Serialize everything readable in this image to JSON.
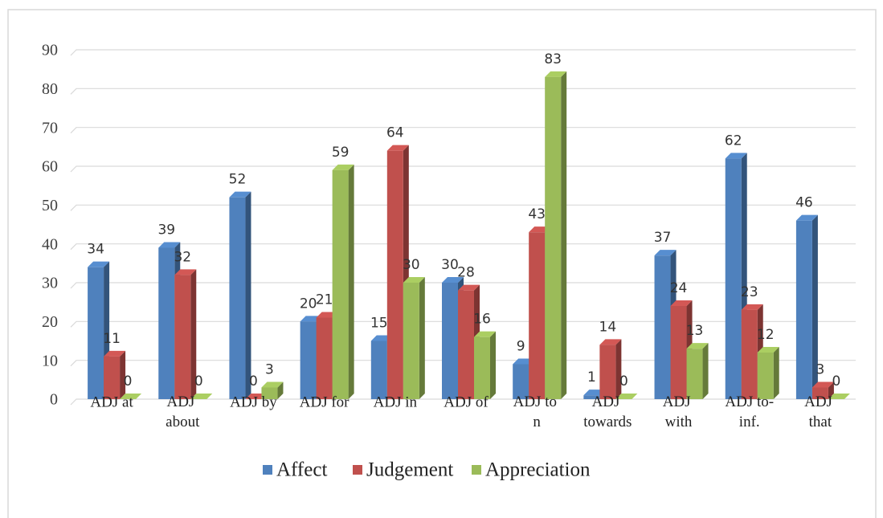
{
  "chart_data": {
    "type": "bar",
    "categories": [
      "ADJ at",
      "ADJ about",
      "ADJ by",
      "ADJ for",
      "ADJ in",
      "ADJ of",
      "ADJ to n",
      "ADJ towards",
      "ADJ with",
      "ADJ to-inf.",
      "ADJ that"
    ],
    "series": [
      {
        "name": "Affect",
        "color": "#4f81bd",
        "values": [
          34,
          39,
          52,
          20,
          15,
          30,
          9,
          1,
          37,
          62,
          46
        ]
      },
      {
        "name": "Judgement",
        "color": "#c0504d",
        "values": [
          11,
          32,
          0,
          21,
          64,
          28,
          43,
          14,
          24,
          23,
          3
        ]
      },
      {
        "name": "Appreciation",
        "color": "#9bbb59",
        "values": [
          0,
          0,
          3,
          59,
          30,
          16,
          83,
          0,
          13,
          12,
          0
        ]
      }
    ],
    "ylim": [
      0,
      90
    ],
    "yticks": [
      0,
      10,
      20,
      30,
      40,
      50,
      60,
      70,
      80,
      90
    ],
    "grid": true,
    "legend": "bottom"
  }
}
